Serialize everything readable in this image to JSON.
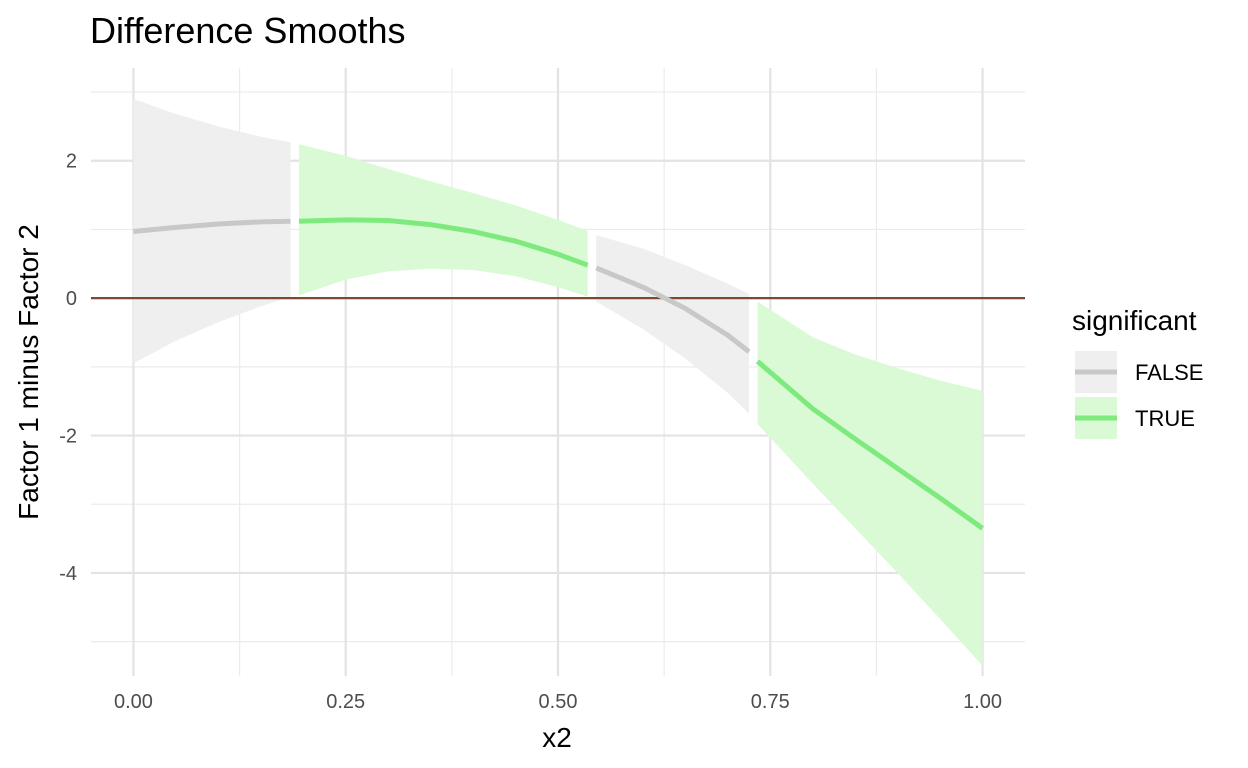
{
  "chart_data": {
    "type": "line",
    "title": "Difference Smooths",
    "xlabel": "x2",
    "ylabel": "Factor 1 minus Factor 2",
    "xlim": [
      -0.05,
      1.05
    ],
    "ylim": [
      -5.5,
      3.35
    ],
    "x_ticks": [
      0.0,
      0.25,
      0.5,
      0.75,
      1.0
    ],
    "x_tick_labels": [
      "0.00",
      "0.25",
      "0.50",
      "0.75",
      "1.00"
    ],
    "y_ticks": [
      -4,
      -2,
      0,
      2
    ],
    "y_tick_labels": [
      "-4",
      "-2",
      "0",
      "2"
    ],
    "grid": true,
    "reference_line": {
      "y": 0,
      "color": "#7b4a33"
    },
    "legend": {
      "title": "significant",
      "position": "right",
      "entries": [
        {
          "label": "FALSE",
          "line_color": "#c8c8c8",
          "fill_color": "#efefef"
        },
        {
          "label": "TRUE",
          "line_color": "#7eea7e",
          "fill_color": "#dafad6"
        }
      ]
    },
    "series": [
      {
        "significant": "FALSE",
        "x": [
          0.0,
          0.05,
          0.1,
          0.15,
          0.185
        ],
        "y": [
          0.97,
          1.03,
          1.08,
          1.11,
          1.12
        ],
        "lower": [
          -0.95,
          -0.62,
          -0.35,
          -0.12,
          0.02
        ],
        "upper": [
          2.9,
          2.68,
          2.5,
          2.35,
          2.27
        ]
      },
      {
        "significant": "TRUE",
        "x": [
          0.195,
          0.25,
          0.3,
          0.35,
          0.4,
          0.45,
          0.5,
          0.535
        ],
        "y": [
          1.12,
          1.14,
          1.13,
          1.07,
          0.97,
          0.83,
          0.64,
          0.48
        ],
        "lower": [
          0.04,
          0.27,
          0.39,
          0.43,
          0.41,
          0.32,
          0.16,
          0.02
        ],
        "upper": [
          2.24,
          2.07,
          1.88,
          1.7,
          1.53,
          1.35,
          1.14,
          0.98
        ]
      },
      {
        "significant": "FALSE",
        "x": [
          0.545,
          0.6,
          0.65,
          0.7,
          0.725
        ],
        "y": [
          0.44,
          0.16,
          -0.15,
          -0.54,
          -0.78
        ],
        "lower": [
          -0.05,
          -0.45,
          -0.88,
          -1.38,
          -1.68
        ],
        "upper": [
          0.92,
          0.72,
          0.48,
          0.21,
          0.06
        ]
      },
      {
        "significant": "TRUE",
        "x": [
          0.735,
          0.8,
          0.85,
          0.9,
          0.95,
          1.0
        ],
        "y": [
          -0.92,
          -1.61,
          -2.05,
          -2.48,
          -2.91,
          -3.35
        ],
        "lower": [
          -1.83,
          -2.7,
          -3.35,
          -4.0,
          -4.67,
          -5.35
        ],
        "upper": [
          -0.05,
          -0.57,
          -0.82,
          -1.02,
          -1.2,
          -1.35
        ]
      }
    ]
  }
}
